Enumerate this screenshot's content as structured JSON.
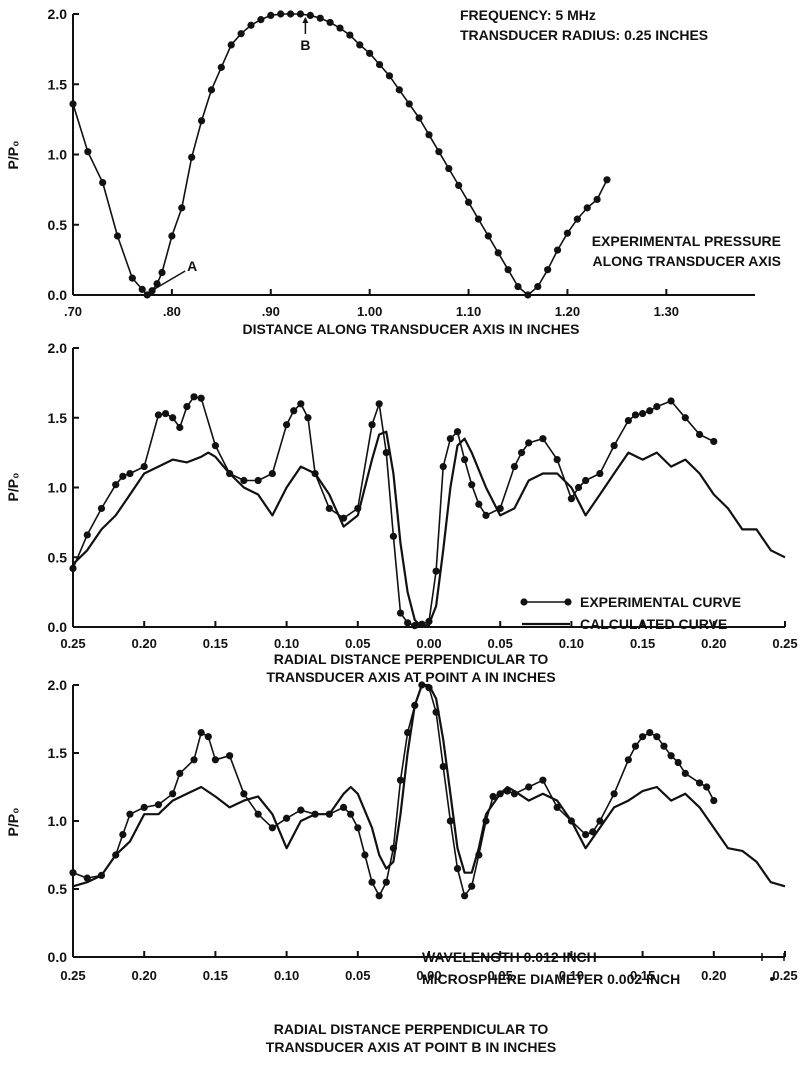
{
  "chart_data": [
    {
      "type": "line",
      "xlabel": "DISTANCE ALONG TRANSDUCER AXIS IN INCHES",
      "ylabel": "P/P₀",
      "xlim": [
        0.7,
        1.42
      ],
      "ylim": [
        0.0,
        2.0
      ],
      "x_ticks": [
        {
          "v": 0.7,
          "label": ".70"
        },
        {
          "v": 0.8,
          "label": ".80"
        },
        {
          "v": 0.9,
          "label": ".90"
        },
        {
          "v": 1.0,
          "label": "1.00"
        },
        {
          "v": 1.1,
          "label": "1.10"
        },
        {
          "v": 1.2,
          "label": "1.20"
        },
        {
          "v": 1.3,
          "label": "1.30"
        }
      ],
      "y_ticks": [
        {
          "v": 0.0,
          "label": "0.0"
        },
        {
          "v": 0.5,
          "label": "0.5"
        },
        {
          "v": 1.0,
          "label": "1.0"
        },
        {
          "v": 1.5,
          "label": "1.5"
        },
        {
          "v": 2.0,
          "label": "2.0"
        }
      ],
      "info": [
        "FREQUENCY: 5 MHz",
        "TRANSDUCER RADIUS: 0.25 INCHES"
      ],
      "annotation": [
        "EXPERIMENTAL PRESSURE",
        "ALONG TRANSDUCER AXIS"
      ],
      "point_labels": [
        {
          "label": "A",
          "x": 0.775,
          "y": 0.0
        },
        {
          "label": "B",
          "x": 0.935,
          "y": 2.0
        }
      ],
      "series": [
        {
          "style": "dots",
          "x": [
            0.7,
            0.715,
            0.73,
            0.745,
            0.76,
            0.77,
            0.775,
            0.78,
            0.785,
            0.79,
            0.8,
            0.81,
            0.82,
            0.83,
            0.84,
            0.85,
            0.86,
            0.87,
            0.88,
            0.89,
            0.9,
            0.91,
            0.92,
            0.93,
            0.94,
            0.95,
            0.96,
            0.97,
            0.98,
            0.99,
            1.0,
            1.01,
            1.02,
            1.03,
            1.04,
            1.05,
            1.06,
            1.07,
            1.08,
            1.09,
            1.1,
            1.11,
            1.12,
            1.13,
            1.14,
            1.15,
            1.16,
            1.17,
            1.18,
            1.19,
            1.2,
            1.21,
            1.22,
            1.23,
            1.24
          ],
          "values": [
            1.36,
            1.02,
            0.8,
            0.42,
            0.12,
            0.04,
            0.0,
            0.03,
            0.08,
            0.16,
            0.42,
            0.62,
            0.98,
            1.24,
            1.46,
            1.62,
            1.78,
            1.86,
            1.92,
            1.96,
            1.99,
            2.0,
            2.0,
            2.0,
            1.99,
            1.97,
            1.94,
            1.9,
            1.85,
            1.78,
            1.72,
            1.64,
            1.56,
            1.46,
            1.36,
            1.26,
            1.14,
            1.02,
            0.9,
            0.78,
            0.66,
            0.54,
            0.42,
            0.3,
            0.18,
            0.06,
            0.0,
            0.06,
            0.18,
            0.32,
            0.44,
            0.54,
            0.62,
            0.68,
            0.82
          ]
        }
      ]
    },
    {
      "type": "line",
      "xlabel": "RADIAL DISTANCE PERPENDICULAR TO",
      "xlabel2": "TRANSDUCER AXIS AT POINT A IN INCHES",
      "ylabel": "P/P₀",
      "xlim": [
        -0.25,
        0.25
      ],
      "ylim": [
        0.0,
        2.0
      ],
      "x_ticks": [
        {
          "v": -0.25,
          "label": "0.25"
        },
        {
          "v": -0.2,
          "label": "0.20"
        },
        {
          "v": -0.15,
          "label": "0.15"
        },
        {
          "v": -0.1,
          "label": "0.10"
        },
        {
          "v": -0.05,
          "label": "0.05"
        },
        {
          "v": 0.0,
          "label": "0.00"
        },
        {
          "v": 0.05,
          "label": "0.05"
        },
        {
          "v": 0.1,
          "label": "0.10"
        },
        {
          "v": 0.15,
          "label": "0.15"
        },
        {
          "v": 0.2,
          "label": "0.20"
        },
        {
          "v": 0.25,
          "label": "0.25"
        }
      ],
      "y_ticks": [
        {
          "v": 0.0,
          "label": "0.0"
        },
        {
          "v": 0.5,
          "label": "0.5"
        },
        {
          "v": 1.0,
          "label": "1.0"
        },
        {
          "v": 1.5,
          "label": "1.5"
        },
        {
          "v": 2.0,
          "label": "2.0"
        }
      ],
      "legend": [
        {
          "label": "EXPERIMENTAL CURVE",
          "style": "dots"
        },
        {
          "label": "CALCULATED CURVE",
          "style": "line"
        }
      ],
      "series": [
        {
          "style": "dots",
          "x": [
            -0.25,
            -0.24,
            -0.23,
            -0.22,
            -0.215,
            -0.21,
            -0.2,
            -0.19,
            -0.185,
            -0.18,
            -0.175,
            -0.17,
            -0.165,
            -0.16,
            -0.15,
            -0.14,
            -0.13,
            -0.12,
            -0.11,
            -0.1,
            -0.095,
            -0.09,
            -0.085,
            -0.08,
            -0.07,
            -0.06,
            -0.05,
            -0.04,
            -0.035,
            -0.03,
            -0.025,
            -0.02,
            -0.015,
            -0.01,
            -0.005,
            0.0,
            0.005,
            0.01,
            0.015,
            0.02,
            0.025,
            0.03,
            0.035,
            0.04,
            0.05,
            0.06,
            0.065,
            0.07,
            0.08,
            0.09,
            0.1,
            0.105,
            0.11,
            0.12,
            0.13,
            0.14,
            0.145,
            0.15,
            0.155,
            0.16,
            0.17,
            0.18,
            0.19,
            0.2
          ],
          "values": [
            0.42,
            0.66,
            0.85,
            1.02,
            1.08,
            1.1,
            1.15,
            1.52,
            1.53,
            1.5,
            1.43,
            1.58,
            1.65,
            1.64,
            1.3,
            1.1,
            1.05,
            1.05,
            1.1,
            1.45,
            1.55,
            1.6,
            1.5,
            1.1,
            0.85,
            0.78,
            0.85,
            1.45,
            1.6,
            1.25,
            0.65,
            0.1,
            0.03,
            0.01,
            0.02,
            0.04,
            0.4,
            1.15,
            1.35,
            1.4,
            1.2,
            1.02,
            0.88,
            0.8,
            0.85,
            1.15,
            1.25,
            1.32,
            1.35,
            1.2,
            0.92,
            1.0,
            1.05,
            1.1,
            1.3,
            1.48,
            1.52,
            1.53,
            1.55,
            1.58,
            1.62,
            1.5,
            1.38,
            1.33
          ]
        },
        {
          "style": "line",
          "x": [
            -0.25,
            -0.24,
            -0.23,
            -0.22,
            -0.21,
            -0.2,
            -0.19,
            -0.18,
            -0.17,
            -0.16,
            -0.155,
            -0.15,
            -0.14,
            -0.13,
            -0.12,
            -0.11,
            -0.1,
            -0.09,
            -0.08,
            -0.07,
            -0.06,
            -0.05,
            -0.04,
            -0.035,
            -0.03,
            -0.025,
            -0.02,
            -0.015,
            -0.01,
            -0.005,
            0.0,
            0.005,
            0.01,
            0.015,
            0.02,
            0.025,
            0.03,
            0.04,
            0.05,
            0.06,
            0.07,
            0.08,
            0.09,
            0.1,
            0.11,
            0.12,
            0.13,
            0.14,
            0.15,
            0.16,
            0.17,
            0.18,
            0.19,
            0.2,
            0.21,
            0.22,
            0.23,
            0.24,
            0.25
          ],
          "values": [
            0.45,
            0.55,
            0.7,
            0.8,
            0.95,
            1.1,
            1.15,
            1.2,
            1.18,
            1.22,
            1.25,
            1.22,
            1.1,
            1.0,
            0.95,
            0.8,
            1.0,
            1.15,
            1.1,
            0.95,
            0.72,
            0.8,
            1.2,
            1.38,
            1.4,
            1.1,
            0.6,
            0.25,
            0.05,
            0.0,
            0.02,
            0.15,
            0.55,
            1.0,
            1.3,
            1.35,
            1.25,
            1.0,
            0.8,
            0.85,
            1.05,
            1.1,
            1.1,
            1.0,
            0.8,
            0.95,
            1.1,
            1.25,
            1.2,
            1.25,
            1.15,
            1.2,
            1.1,
            0.95,
            0.85,
            0.7,
            0.7,
            0.55,
            0.5
          ]
        }
      ]
    },
    {
      "type": "line",
      "xlabel": "RADIAL DISTANCE PERPENDICULAR TO",
      "xlabel2": "TRANSDUCER AXIS AT POINT B IN INCHES",
      "ylabel": "P/P₀",
      "xlim": [
        -0.25,
        0.25
      ],
      "ylim": [
        0.0,
        2.0
      ],
      "x_ticks": [
        {
          "v": -0.25,
          "label": "0.25"
        },
        {
          "v": -0.2,
          "label": "0.20"
        },
        {
          "v": -0.15,
          "label": "0.15"
        },
        {
          "v": -0.1,
          "label": "0.10"
        },
        {
          "v": -0.05,
          "label": "0.05"
        },
        {
          "v": 0.0,
          "label": "0.00"
        },
        {
          "v": 0.05,
          "label": "0.05"
        },
        {
          "v": 0.1,
          "label": "0.10"
        },
        {
          "v": 0.15,
          "label": "0.15"
        },
        {
          "v": 0.2,
          "label": "0.20"
        },
        {
          "v": 0.25,
          "label": "0.25"
        }
      ],
      "y_ticks": [
        {
          "v": 0.0,
          "label": "0.0"
        },
        {
          "v": 0.5,
          "label": "0.5"
        },
        {
          "v": 1.0,
          "label": "1.0"
        },
        {
          "v": 1.5,
          "label": "1.5"
        },
        {
          "v": 2.0,
          "label": "2.0"
        }
      ],
      "notes": [
        "WAVELENGTH 0.012 INCH",
        "MICROSPHERE DIAMETER 0.002 INCH"
      ],
      "series": [
        {
          "style": "dots",
          "x": [
            -0.25,
            -0.24,
            -0.23,
            -0.22,
            -0.215,
            -0.21,
            -0.2,
            -0.19,
            -0.18,
            -0.175,
            -0.165,
            -0.16,
            -0.155,
            -0.15,
            -0.14,
            -0.13,
            -0.12,
            -0.11,
            -0.1,
            -0.09,
            -0.08,
            -0.07,
            -0.06,
            -0.055,
            -0.05,
            -0.045,
            -0.04,
            -0.035,
            -0.03,
            -0.025,
            -0.02,
            -0.015,
            -0.01,
            -0.005,
            0.0,
            0.005,
            0.01,
            0.015,
            0.02,
            0.025,
            0.03,
            0.035,
            0.04,
            0.045,
            0.05,
            0.055,
            0.06,
            0.07,
            0.08,
            0.09,
            0.1,
            0.11,
            0.115,
            0.12,
            0.13,
            0.14,
            0.145,
            0.15,
            0.155,
            0.16,
            0.165,
            0.17,
            0.175,
            0.18,
            0.19,
            0.195,
            0.2
          ],
          "values": [
            0.62,
            0.58,
            0.6,
            0.75,
            0.9,
            1.05,
            1.1,
            1.12,
            1.2,
            1.35,
            1.45,
            1.65,
            1.62,
            1.45,
            1.48,
            1.2,
            1.05,
            0.95,
            1.02,
            1.08,
            1.05,
            1.05,
            1.1,
            1.05,
            0.95,
            0.75,
            0.55,
            0.45,
            0.55,
            0.8,
            1.3,
            1.65,
            1.85,
            2.0,
            1.98,
            1.8,
            1.4,
            1.0,
            0.65,
            0.45,
            0.52,
            0.75,
            1.0,
            1.18,
            1.2,
            1.22,
            1.2,
            1.25,
            1.3,
            1.1,
            1.0,
            0.9,
            0.92,
            1.0,
            1.2,
            1.45,
            1.55,
            1.62,
            1.65,
            1.62,
            1.55,
            1.48,
            1.43,
            1.35,
            1.28,
            1.25,
            1.15
          ]
        },
        {
          "style": "line",
          "x": [
            -0.25,
            -0.24,
            -0.23,
            -0.22,
            -0.21,
            -0.2,
            -0.19,
            -0.18,
            -0.17,
            -0.16,
            -0.15,
            -0.14,
            -0.13,
            -0.12,
            -0.11,
            -0.1,
            -0.09,
            -0.08,
            -0.07,
            -0.06,
            -0.055,
            -0.05,
            -0.04,
            -0.035,
            -0.03,
            -0.025,
            -0.02,
            -0.015,
            -0.01,
            -0.005,
            0.0,
            0.005,
            0.01,
            0.015,
            0.02,
            0.025,
            0.03,
            0.035,
            0.04,
            0.05,
            0.055,
            0.06,
            0.07,
            0.08,
            0.09,
            0.1,
            0.11,
            0.12,
            0.13,
            0.14,
            0.15,
            0.16,
            0.17,
            0.18,
            0.19,
            0.2,
            0.21,
            0.22,
            0.23,
            0.24,
            0.25
          ],
          "values": [
            0.52,
            0.55,
            0.6,
            0.75,
            0.85,
            1.05,
            1.05,
            1.15,
            1.2,
            1.25,
            1.18,
            1.1,
            1.15,
            1.18,
            1.05,
            0.8,
            1.0,
            1.05,
            1.05,
            1.2,
            1.25,
            1.2,
            0.95,
            0.75,
            0.65,
            0.7,
            1.05,
            1.5,
            1.85,
            2.0,
            2.0,
            1.9,
            1.6,
            1.2,
            0.8,
            0.62,
            0.62,
            0.8,
            1.05,
            1.2,
            1.25,
            1.22,
            1.15,
            1.2,
            1.15,
            1.0,
            0.8,
            0.95,
            1.1,
            1.15,
            1.22,
            1.25,
            1.15,
            1.2,
            1.1,
            0.95,
            0.8,
            0.78,
            0.7,
            0.55,
            0.52
          ]
        }
      ]
    }
  ]
}
